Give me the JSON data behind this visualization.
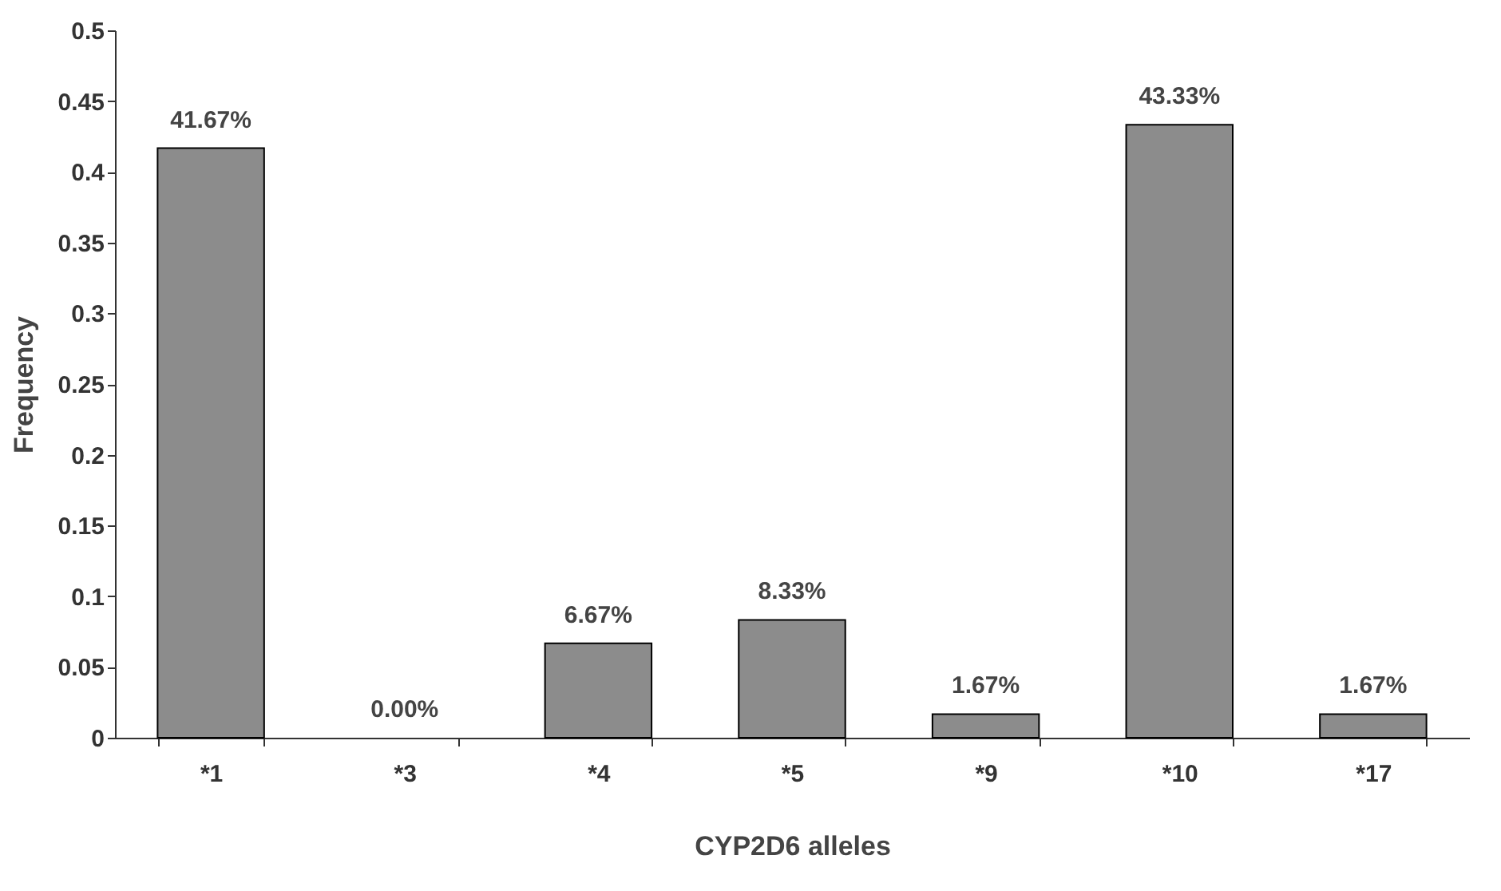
{
  "chart_data": {
    "type": "bar",
    "xlabel": "CYP2D6 alleles",
    "ylabel": "Frequency",
    "categories": [
      "*1",
      "*3",
      "*4",
      "*5",
      "*9",
      "*10",
      "*17"
    ],
    "values": [
      0.4167,
      0,
      0.0667,
      0.0833,
      0.0167,
      0.4333,
      0.0167
    ],
    "value_labels": [
      "41.67%",
      "0.00%",
      "6.67%",
      "8.33%",
      "1.67%",
      "43.33%",
      "1.67%"
    ],
    "color": "#8c8c8c",
    "ylim": [
      0,
      0.5
    ],
    "yticks": [
      0,
      0.05,
      0.1,
      0.15,
      0.2,
      0.25,
      0.3,
      0.35,
      0.4,
      0.45,
      0.5
    ],
    "grid": false
  }
}
